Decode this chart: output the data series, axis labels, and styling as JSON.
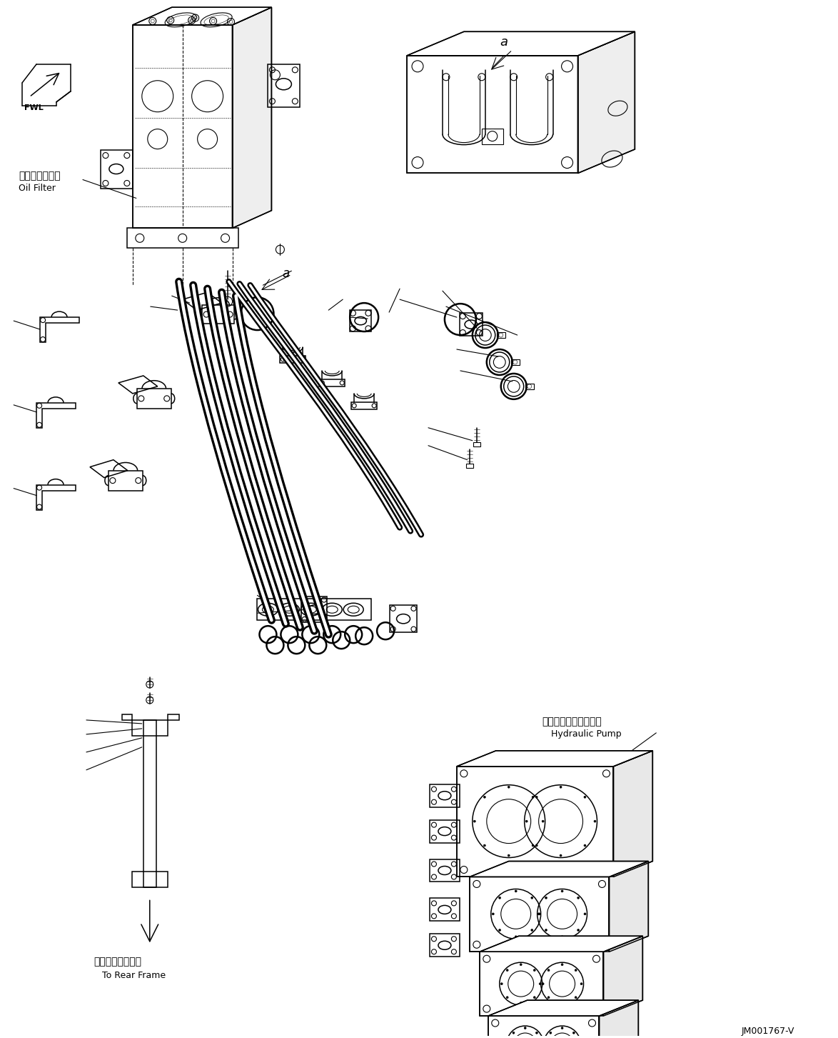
{
  "bg_color": "#ffffff",
  "line_color": "#000000",
  "fig_width": 11.74,
  "fig_height": 14.53,
  "dpi": 100,
  "label_oil_filter_jp": "オイルフィルタ",
  "label_oil_filter_en": "Oil Filter",
  "label_hydraulic_pump_jp": "ハイドロリックポンプ",
  "label_hydraulic_pump_en": "Hydraulic Pump",
  "label_rear_frame_jp": "リヤーフレームへ",
  "label_rear_frame_en": "To Rear Frame",
  "diagram_id": "JM001767-V"
}
